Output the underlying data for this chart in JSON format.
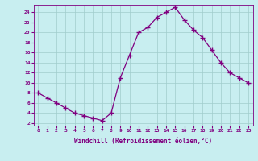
{
  "x": [
    0,
    1,
    2,
    3,
    4,
    5,
    6,
    7,
    8,
    9,
    10,
    11,
    12,
    13,
    14,
    15,
    16,
    17,
    18,
    19,
    20,
    21,
    22,
    23
  ],
  "y": [
    8,
    7,
    6,
    5,
    4,
    3.5,
    3,
    2.5,
    4,
    11,
    15.5,
    20,
    21,
    23,
    24,
    25,
    22.5,
    20.5,
    19,
    16.5,
    14,
    12,
    11,
    10
  ],
  "line_color": "#800080",
  "marker": "+",
  "xlabel": "Windchill (Refroidissement éolien,°C)",
  "xlim": [
    -0.5,
    23.5
  ],
  "ylim": [
    1.5,
    25.5
  ],
  "yticks": [
    2,
    4,
    6,
    8,
    10,
    12,
    14,
    16,
    18,
    20,
    22,
    24
  ],
  "xticks": [
    0,
    1,
    2,
    3,
    4,
    5,
    6,
    7,
    8,
    9,
    10,
    11,
    12,
    13,
    14,
    15,
    16,
    17,
    18,
    19,
    20,
    21,
    22,
    23
  ],
  "bg_color": "#c8eef0",
  "grid_color": "#a0cccc",
  "label_color": "#800080",
  "tick_color": "#800080"
}
